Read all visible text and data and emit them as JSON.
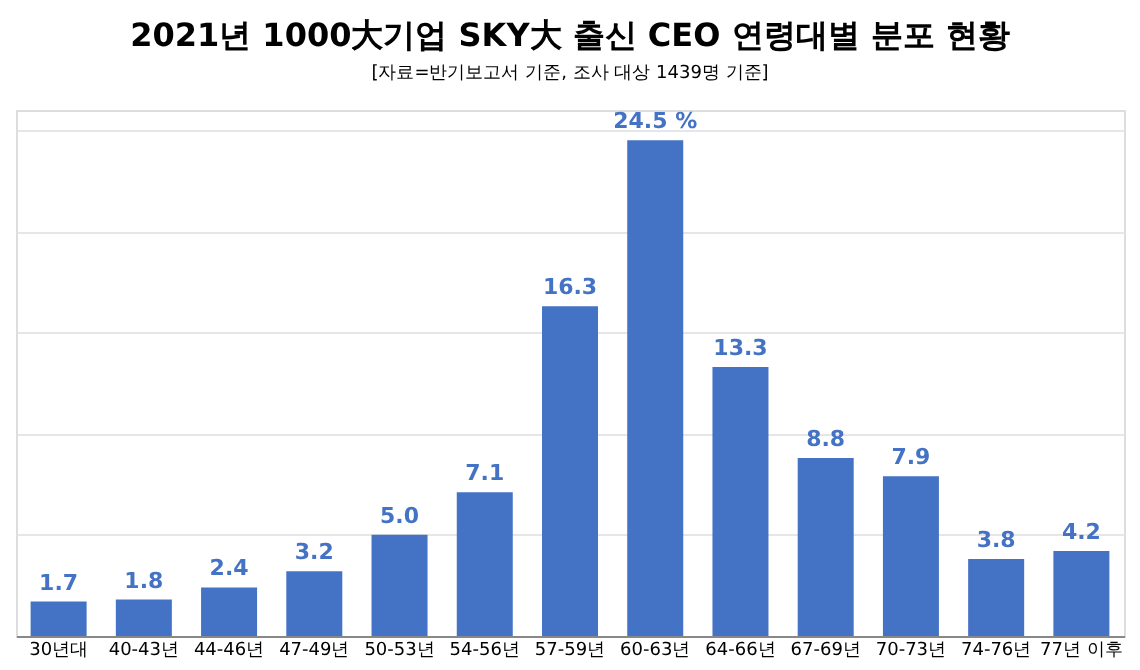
{
  "chart_data": {
    "type": "bar",
    "title": "2021년 1000大기업 SKY大 출신 CEO 연령대별 분포 현황",
    "subtitle": "[자료=반기보고서 기준, 조사 대상 1439명 기준]",
    "categories": [
      "30년대",
      "40-43년",
      "44-46년",
      "47-49년",
      "50-53년",
      "54-56년",
      "57-59년",
      "60-63년",
      "64-66년",
      "67-69년",
      "70-73년",
      "74-76년",
      "77년 이후"
    ],
    "values": [
      1.7,
      1.8,
      2.4,
      3.2,
      5.0,
      7.1,
      16.3,
      24.5,
      13.3,
      8.8,
      7.9,
      3.8,
      4.2
    ],
    "value_labels": [
      "1.7",
      "1.8",
      "2.4",
      "3.2",
      "5.0",
      "7.1",
      "16.3",
      "24.5 %",
      "13.3",
      "8.8",
      "7.9",
      "3.8",
      "4.2"
    ],
    "color": "#4472c4",
    "ylim": [
      0,
      26
    ],
    "yticks": [
      0,
      5,
      10,
      15,
      20,
      25
    ],
    "grid": "y",
    "tick_labels": "x"
  }
}
